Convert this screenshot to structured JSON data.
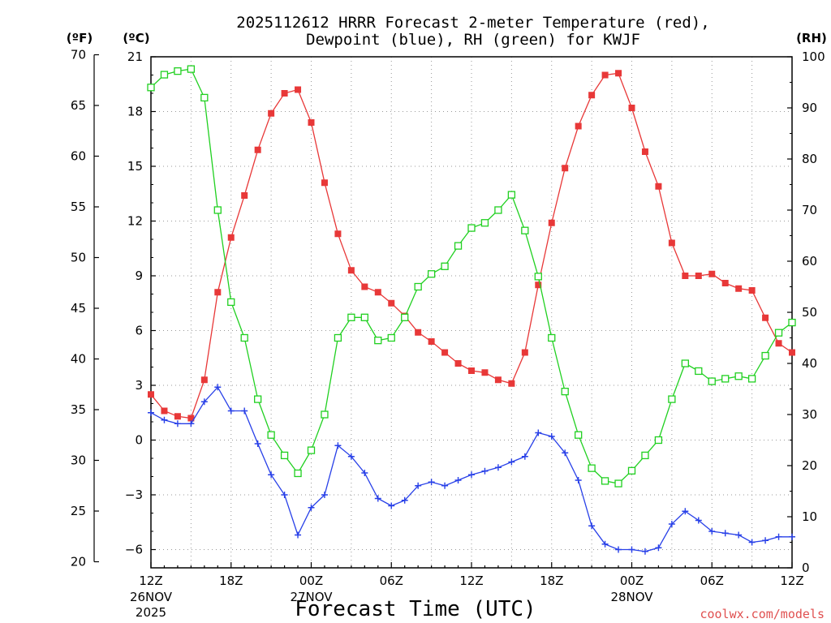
{
  "chart_data": {
    "type": "line",
    "title_line1": "2025112612 HRRR Forecast 2-meter Temperature (red),",
    "title_line2": "Dewpoint (blue), RH (green) for KWJF",
    "xlabel": "Forecast Time (UTC)",
    "credit": "coolwx.com/models",
    "unit_f": "(ºF)",
    "unit_c": "(ºC)",
    "unit_rh": "(RH)",
    "x_ticks": [
      {
        "hour": 0,
        "label": "12Z",
        "label2": "26NOV",
        "label3": "2025"
      },
      {
        "hour": 6,
        "label": "18Z"
      },
      {
        "hour": 12,
        "label": "00Z",
        "label2": "27NOV"
      },
      {
        "hour": 18,
        "label": "06Z"
      },
      {
        "hour": 24,
        "label": "12Z"
      },
      {
        "hour": 30,
        "label": "18Z"
      },
      {
        "hour": 36,
        "label": "00Z",
        "label2": "28NOV"
      },
      {
        "hour": 42,
        "label": "06Z"
      },
      {
        "hour": 48,
        "label": "12Z"
      }
    ],
    "xlim": [
      0,
      48
    ],
    "ylim_c": [
      -7.0,
      21.0
    ],
    "ylim_rh": [
      0,
      100
    ],
    "yticks_c": [
      "21",
      "18",
      "15",
      "12",
      "9",
      "6",
      "3",
      "0",
      "−3",
      "−6"
    ],
    "yticks_c_values": [
      21,
      18,
      15,
      12,
      9,
      6,
      3,
      0,
      -3,
      -6
    ],
    "yticks_f": [
      "70",
      "65",
      "60",
      "55",
      "50",
      "45",
      "40",
      "35",
      "30",
      "25",
      "20"
    ],
    "yticks_f_values": [
      70,
      65,
      60,
      55,
      50,
      45,
      40,
      35,
      30,
      25,
      20
    ],
    "yticks_rh": [
      "100",
      "90",
      "80",
      "70",
      "60",
      "50",
      "40",
      "30",
      "20",
      "10",
      "0"
    ],
    "yticks_rh_values": [
      100,
      90,
      80,
      70,
      60,
      50,
      40,
      30,
      20,
      10,
      0
    ],
    "colors": {
      "temperature": "#e83838",
      "dewpoint": "#2840e8",
      "rh": "#20d020",
      "grid": "#999999"
    },
    "series": [
      {
        "name": "Temperature (ºC)",
        "axis": "c",
        "marker": "square",
        "values": [
          2.5,
          1.6,
          1.3,
          1.2,
          3.3,
          8.1,
          11.1,
          13.4,
          15.9,
          17.9,
          19.0,
          19.2,
          17.4,
          14.1,
          11.3,
          9.3,
          8.4,
          8.1,
          7.5,
          6.8,
          5.9,
          5.4,
          4.8,
          4.2,
          3.8,
          3.7,
          3.3,
          3.1,
          4.8,
          8.5,
          11.9,
          14.9,
          17.2,
          18.9,
          20.0,
          20.1,
          18.2,
          15.8,
          13.9,
          10.8,
          9.0,
          9.0,
          9.1,
          8.6,
          8.3,
          8.2,
          6.7,
          5.3,
          4.8
        ]
      },
      {
        "name": "Dewpoint (ºC)",
        "axis": "c",
        "marker": "plus",
        "values": [
          1.5,
          1.1,
          0.9,
          0.9,
          2.1,
          2.9,
          1.6,
          1.6,
          -0.2,
          -1.9,
          -3.0,
          -5.2,
          -3.7,
          -3.0,
          -0.3,
          -0.9,
          -1.8,
          -3.2,
          -3.6,
          -3.3,
          -2.5,
          -2.3,
          -2.5,
          -2.2,
          -1.9,
          -1.7,
          -1.5,
          -1.2,
          -0.9,
          0.4,
          0.2,
          -0.7,
          -2.2,
          -4.7,
          -5.7,
          -6.0,
          -6.0,
          -6.1,
          -5.9,
          -4.6,
          -3.9,
          -4.4,
          -5.0,
          -5.1,
          -5.2,
          -5.6,
          -5.5,
          -5.3,
          -5.3
        ]
      },
      {
        "name": "RH (%)",
        "axis": "rh",
        "marker": "square-open",
        "values": [
          94,
          96.5,
          97.2,
          97.6,
          92,
          70,
          52,
          45,
          33,
          26,
          22,
          18.5,
          23,
          30,
          45,
          49,
          49,
          44.5,
          45,
          49,
          55,
          57.5,
          59,
          63,
          66.5,
          67.5,
          70,
          73,
          66,
          57,
          45,
          34.5,
          26,
          19.5,
          17,
          16.5,
          19,
          22,
          25,
          33,
          40,
          38.5,
          36.5,
          37,
          37.5,
          37,
          41.5,
          46,
          48
        ]
      }
    ]
  }
}
